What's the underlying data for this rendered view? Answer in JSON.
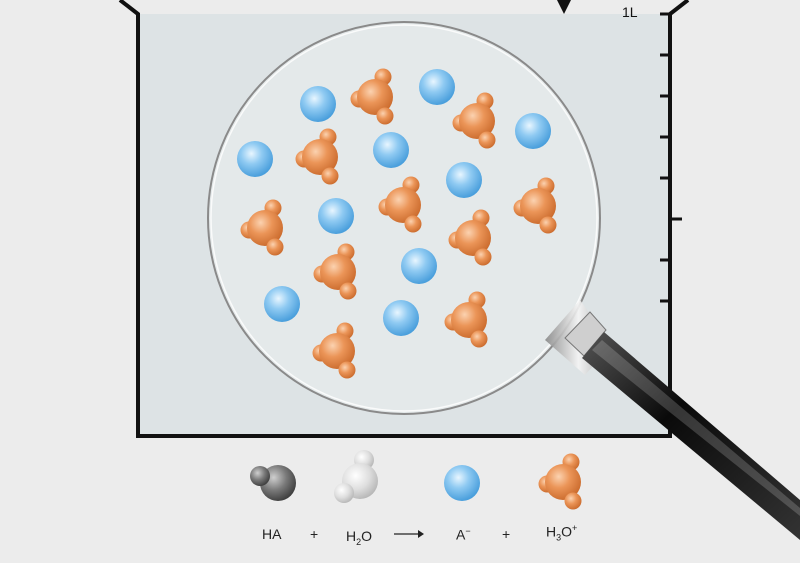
{
  "beaker": {
    "volume_label": "1L",
    "scale_ticks": 7,
    "liquid_color": "#dde3e5",
    "wall_color": "#111111"
  },
  "colors": {
    "anion": "#6bb8ea",
    "hydronium": "#e88a4e",
    "acid_ha": "#6b6b6b",
    "water": "#d9d9d9"
  },
  "molecules_in_view": {
    "anion_count": 10,
    "hydronium_count": 11
  },
  "equation": {
    "ha": "HA",
    "plus1": "+",
    "h2o_main": "H",
    "h2o_sub": "2",
    "h2o_end": "O",
    "arrow": "⟶",
    "a_main": "A",
    "a_sup": "−",
    "plus2": "+",
    "h3o_main": "H",
    "h3o_sub": "3",
    "h3o_mid": "O",
    "h3o_sup": "+"
  },
  "icons": {
    "magnifier": "magnifying-glass-icon",
    "acid": "ha-molecule-icon",
    "water": "water-molecule-icon",
    "anion": "anion-icon",
    "hydronium": "hydronium-icon"
  }
}
